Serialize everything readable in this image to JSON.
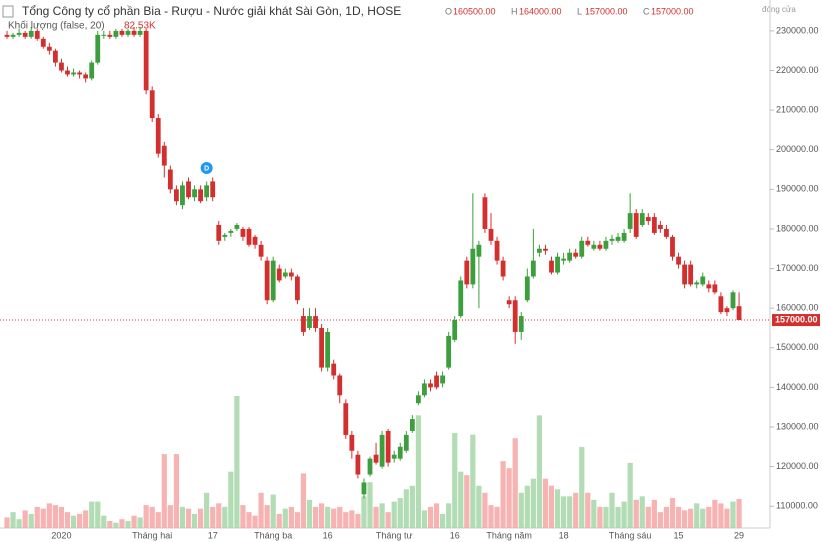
{
  "chart_data": {
    "type": "candlestick",
    "header": {
      "title": "Tổng Công ty cổ phần Bia - Rượu - Nước giải khát Sài Gòn, 1D, HOSE",
      "ohlc": [
        {
          "name": "O",
          "value": 160500,
          "label": "160500.00"
        },
        {
          "name": "H",
          "value": 164000,
          "label": "164000.00"
        },
        {
          "name": "L",
          "value": 157000,
          "label": "157000.00"
        },
        {
          "name": "C",
          "value": 157000,
          "label": "157000.00"
        }
      ],
      "volume_title": "Khối lượng (false, 20)",
      "volume": {
        "value": 82530,
        "label": "82.53K"
      },
      "mode": "đóng cửa"
    },
    "dividend_marker": "D",
    "last_price": {
      "value": 157000,
      "label": "157000.00"
    },
    "up_color": "#3c9e3c",
    "down_color": "#d32f2f",
    "volume_up_color": "#a5d6a7",
    "volume_down_color": "#f6a5a5",
    "ylim": [
      104500,
      237800
    ],
    "yticks": [
      {
        "value": 110000,
        "label": "110000.00"
      },
      {
        "value": 120000,
        "label": "120000.00"
      },
      {
        "value": 130000,
        "label": "130000.00"
      },
      {
        "value": 140000,
        "label": "140000.00"
      },
      {
        "value": 150000,
        "label": "150000.00"
      },
      {
        "value": 160000,
        "label": "160000.00"
      },
      {
        "value": 170000,
        "label": "170000.00"
      },
      {
        "value": 180000,
        "label": "180000.00"
      },
      {
        "value": 190000,
        "label": "190000.00"
      },
      {
        "value": 200000,
        "label": "200000.00"
      },
      {
        "value": 210000,
        "label": "210000.00"
      },
      {
        "value": 220000,
        "label": "220000.00"
      },
      {
        "value": 230000,
        "label": "230000.00"
      }
    ],
    "categories": [
      null,
      null,
      null,
      null,
      null,
      null,
      null,
      null,
      null,
      "2020",
      null,
      null,
      null,
      null,
      null,
      null,
      null,
      null,
      null,
      null,
      null,
      null,
      null,
      null,
      "Tháng hai",
      null,
      null,
      null,
      null,
      null,
      null,
      null,
      null,
      null,
      "17",
      null,
      null,
      null,
      null,
      null,
      null,
      null,
      null,
      null,
      "Tháng ba",
      null,
      null,
      null,
      null,
      null,
      null,
      null,
      null,
      "16",
      null,
      null,
      null,
      null,
      null,
      null,
      null,
      null,
      null,
      null,
      "Tháng tư",
      null,
      null,
      null,
      null,
      null,
      null,
      null,
      null,
      null,
      "16",
      null,
      null,
      null,
      null,
      null,
      null,
      null,
      null,
      "Tháng năm",
      null,
      null,
      null,
      null,
      null,
      null,
      null,
      null,
      "18",
      null,
      null,
      null,
      null,
      null,
      null,
      null,
      null,
      null,
      null,
      "Tháng sáu",
      null,
      null,
      null,
      null,
      null,
      null,
      null,
      "15",
      null,
      null,
      null,
      null,
      null,
      null,
      null,
      null,
      null,
      "29"
    ],
    "ohlc": [
      [
        229000,
        230000,
        228000,
        228500
      ],
      [
        228500,
        229500,
        228000,
        229000
      ],
      [
        229000,
        230500,
        228500,
        229500
      ],
      [
        229500,
        230000,
        228000,
        228500
      ],
      [
        228500,
        231000,
        228000,
        230000
      ],
      [
        230000,
        230500,
        227500,
        228000
      ],
      [
        228000,
        228500,
        225500,
        226000
      ],
      [
        226000,
        227000,
        224000,
        225000
      ],
      [
        225000,
        225500,
        221000,
        222000
      ],
      [
        222000,
        223000,
        219500,
        220000
      ],
      [
        220000,
        221000,
        218500,
        219000
      ],
      [
        219000,
        220500,
        218500,
        219500
      ],
      [
        219500,
        220000,
        218000,
        219000
      ],
      [
        219000,
        219500,
        217000,
        218000
      ],
      [
        218000,
        222500,
        217500,
        222000
      ],
      [
        222000,
        230000,
        221500,
        229000
      ],
      [
        229000,
        230000,
        228000,
        229000
      ],
      [
        229000,
        230000,
        228000,
        228500
      ],
      [
        228500,
        230500,
        228000,
        230000
      ],
      [
        230000,
        230500,
        228500,
        229000
      ],
      [
        229000,
        230500,
        228500,
        230000
      ],
      [
        230000,
        231000,
        228500,
        229000
      ],
      [
        229000,
        231000,
        228500,
        230000
      ],
      [
        230000,
        230500,
        214000,
        215000
      ],
      [
        215000,
        216000,
        207000,
        208000
      ],
      [
        208000,
        209000,
        198000,
        199000
      ],
      [
        201000,
        202000,
        193000,
        196000
      ],
      [
        195000,
        196000,
        189000,
        190000
      ],
      [
        190000,
        191000,
        186000,
        187000
      ],
      [
        186000,
        192000,
        185000,
        191000
      ],
      [
        192000,
        193000,
        187500,
        188000
      ],
      [
        188000,
        191000,
        187000,
        190000
      ],
      [
        190000,
        191000,
        186500,
        187000
      ],
      [
        188000,
        192000,
        187000,
        191000
      ],
      [
        192000,
        193000,
        187000,
        188000
      ],
      [
        181000,
        182000,
        176000,
        177000
      ],
      [
        178000,
        179000,
        177000,
        178500
      ],
      [
        179000,
        180000,
        178000,
        179500
      ],
      [
        180000,
        181500,
        179500,
        181000
      ],
      [
        180000,
        180500,
        177000,
        178000
      ],
      [
        180000,
        180500,
        175500,
        176000
      ],
      [
        178000,
        178500,
        175000,
        176000
      ],
      [
        176000,
        177000,
        172000,
        173000
      ],
      [
        172000,
        173000,
        161000,
        162000
      ],
      [
        162000,
        173000,
        161500,
        172000
      ],
      [
        170000,
        171000,
        166500,
        167000
      ],
      [
        168000,
        170000,
        167500,
        169000
      ],
      [
        169000,
        170000,
        167000,
        168000
      ],
      [
        168000,
        168500,
        161000,
        162000
      ],
      [
        158000,
        160000,
        153000,
        154000
      ],
      [
        155000,
        160000,
        154500,
        158000
      ],
      [
        158000,
        160000,
        154000,
        155000
      ],
      [
        155000,
        156000,
        144000,
        145000
      ],
      [
        145000,
        155000,
        144000,
        154000
      ],
      [
        146000,
        147000,
        142000,
        143000
      ],
      [
        143000,
        143500,
        136000,
        138000
      ],
      [
        136000,
        137000,
        127000,
        128000
      ],
      [
        128000,
        129000,
        122000,
        124000
      ],
      [
        123000,
        124000,
        117000,
        118000
      ],
      [
        113000,
        117000,
        112000,
        116000
      ],
      [
        118000,
        122500,
        117500,
        122000
      ],
      [
        123000,
        126000,
        120500,
        121000
      ],
      [
        120000,
        129000,
        119500,
        128000
      ],
      [
        129000,
        129500,
        120000,
        121000
      ],
      [
        122000,
        124000,
        121000,
        123000
      ],
      [
        122000,
        126000,
        121500,
        125000
      ],
      [
        124000,
        129000,
        123500,
        128000
      ],
      [
        129000,
        133000,
        128500,
        132000
      ],
      [
        136000,
        139000,
        135500,
        138000
      ],
      [
        138000,
        142000,
        137500,
        141000
      ],
      [
        141000,
        142000,
        139000,
        140000
      ],
      [
        143000,
        144000,
        139500,
        140000
      ],
      [
        141000,
        144000,
        140000,
        143000
      ],
      [
        145000,
        154000,
        144500,
        153000
      ],
      [
        152000,
        158000,
        151500,
        157000
      ],
      [
        158000,
        168000,
        157500,
        167000
      ],
      [
        172000,
        173000,
        165000,
        166000
      ],
      [
        166000,
        189000,
        165000,
        175000
      ],
      [
        173000,
        177000,
        160000,
        176000
      ],
      [
        188000,
        189000,
        179000,
        180000
      ],
      [
        180000,
        184000,
        176000,
        177000
      ],
      [
        177000,
        178000,
        171000,
        172000
      ],
      [
        172000,
        173000,
        167000,
        168000
      ],
      [
        162000,
        163000,
        160000,
        161000
      ],
      [
        162000,
        163000,
        151000,
        154000
      ],
      [
        154000,
        159000,
        152000,
        158000
      ],
      [
        162000,
        170000,
        161500,
        168000
      ],
      [
        168000,
        180000,
        167500,
        172000
      ],
      [
        174000,
        176000,
        173000,
        175000
      ],
      [
        175000,
        176000,
        173500,
        174500
      ],
      [
        172000,
        173000,
        168500,
        169000
      ],
      [
        169000,
        174000,
        168500,
        173000
      ],
      [
        172000,
        174000,
        171000,
        172500
      ],
      [
        172000,
        175000,
        171500,
        174000
      ],
      [
        174000,
        175000,
        172500,
        173000
      ],
      [
        173000,
        178000,
        172500,
        177000
      ],
      [
        177000,
        178000,
        175500,
        176000
      ],
      [
        175000,
        177000,
        174500,
        176000
      ],
      [
        176000,
        177000,
        174500,
        175000
      ],
      [
        175000,
        178000,
        174500,
        177000
      ],
      [
        177000,
        178500,
        176000,
        177500
      ],
      [
        177000,
        179000,
        176500,
        178000
      ],
      [
        177000,
        180000,
        176500,
        179000
      ],
      [
        180000,
        189000,
        179000,
        184000
      ],
      [
        184000,
        185000,
        177500,
        178000
      ],
      [
        181000,
        185000,
        180500,
        184000
      ],
      [
        183000,
        184000,
        181000,
        182000
      ],
      [
        183000,
        184000,
        178500,
        179000
      ],
      [
        181000,
        182000,
        179000,
        180000
      ],
      [
        180000,
        181000,
        177500,
        178000
      ],
      [
        178000,
        178500,
        172000,
        173000
      ],
      [
        173000,
        174000,
        170000,
        171000
      ],
      [
        171000,
        172000,
        165000,
        166000
      ],
      [
        171000,
        172000,
        165500,
        166000
      ],
      [
        166000,
        167000,
        165000,
        166500
      ],
      [
        166000,
        169000,
        165500,
        168000
      ],
      [
        166000,
        167000,
        164000,
        165000
      ],
      [
        166000,
        167000,
        163500,
        164000
      ],
      [
        163000,
        164000,
        158500,
        159000
      ],
      [
        160000,
        160500,
        158000,
        159000
      ],
      [
        160000,
        164500,
        159500,
        164000
      ],
      [
        160500,
        164000,
        157000,
        157000
      ]
    ],
    "volumes": [
      30000,
      45000,
      25000,
      50000,
      40000,
      60000,
      55000,
      70000,
      65000,
      60000,
      45000,
      35000,
      40000,
      50000,
      75000,
      75000,
      35000,
      20000,
      15000,
      25000,
      20000,
      35000,
      30000,
      65000,
      60000,
      45000,
      210000,
      65000,
      210000,
      60000,
      55000,
      40000,
      55000,
      100000,
      60000,
      70000,
      60000,
      160000,
      375000,
      65000,
      45000,
      35000,
      100000,
      65000,
      95000,
      40000,
      55000,
      60000,
      45000,
      155000,
      80000,
      60000,
      70000,
      60000,
      55000,
      60000,
      45000,
      50000,
      40000,
      90000,
      130000,
      60000,
      70000,
      45000,
      75000,
      85000,
      110000,
      120000,
      320000,
      50000,
      60000,
      70000,
      40000,
      70000,
      270000,
      160000,
      150000,
      265000,
      120000,
      100000,
      65000,
      60000,
      190000,
      170000,
      255000,
      100000,
      120000,
      140000,
      320000,
      140000,
      120000,
      110000,
      90000,
      90000,
      100000,
      230000,
      100000,
      80000,
      60000,
      60000,
      100000,
      60000,
      75000,
      185000,
      80000,
      90000,
      60000,
      80000,
      45000,
      60000,
      85000,
      60000,
      50000,
      55000,
      70000,
      55000,
      60000,
      80000,
      70000,
      55000,
      75000,
      82530
    ]
  }
}
